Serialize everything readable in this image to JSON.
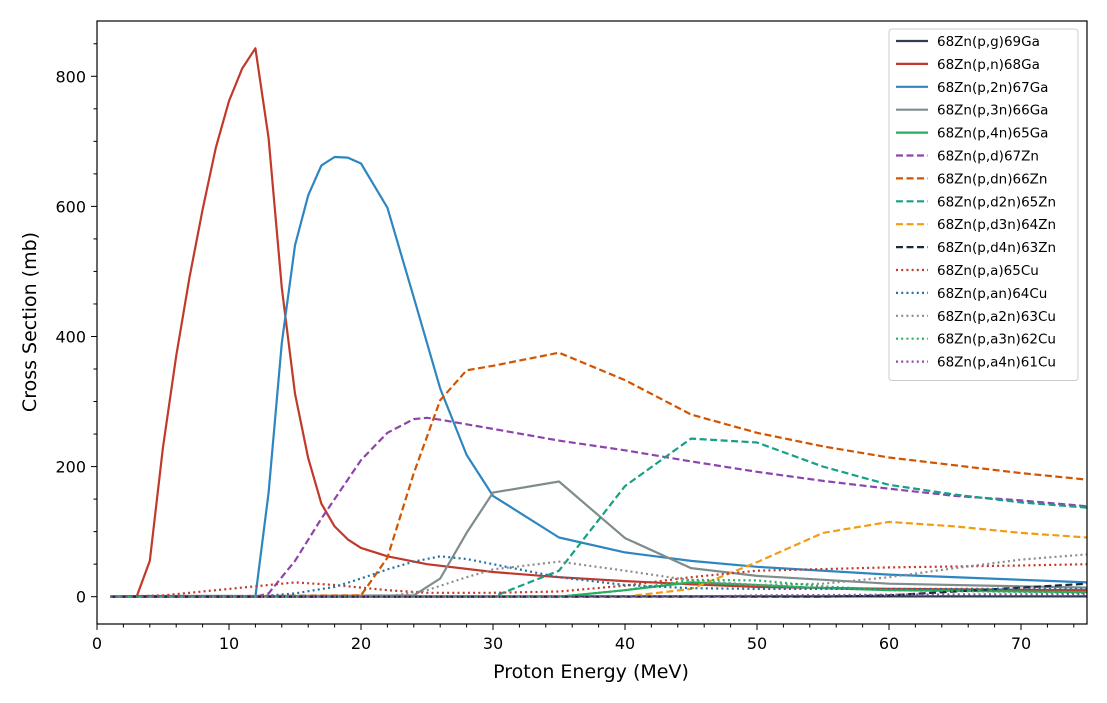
{
  "chart_data": {
    "type": "line",
    "title": "",
    "xlabel": "Proton Energy (MeV)",
    "ylabel": "Cross Section (mb)",
    "xlim": [
      0,
      75
    ],
    "ylim": [
      -42,
      885
    ],
    "xticks": [
      0,
      10,
      20,
      30,
      40,
      50,
      60,
      70
    ],
    "yticks": [
      0,
      200,
      400,
      600,
      800
    ],
    "grid": false,
    "legend_position": "top-right",
    "series": [
      {
        "name": "68Zn(p,g)69Ga",
        "color": "#2c3e50",
        "dash": "solid",
        "x": [
          1,
          5,
          10,
          20,
          30,
          40,
          50,
          60,
          75
        ],
        "y": [
          0.5,
          1,
          1,
          0.5,
          0.5,
          0.5,
          0.5,
          0.5,
          0.5
        ]
      },
      {
        "name": "68Zn(p,n)68Ga",
        "color": "#c0392b",
        "dash": "solid",
        "x": [
          1,
          3,
          4,
          5,
          6,
          7,
          8,
          9,
          10,
          11,
          12,
          13,
          14,
          15,
          16,
          17,
          18,
          19,
          20,
          22,
          25,
          30,
          35,
          40,
          45,
          50,
          60,
          75
        ],
        "y": [
          0,
          0,
          55,
          230,
          370,
          490,
          595,
          690,
          762,
          812,
          843,
          705,
          475,
          312,
          213,
          143,
          108,
          88,
          75,
          62,
          50,
          38,
          30,
          24,
          19,
          15,
          12,
          10
        ]
      },
      {
        "name": "68Zn(p,2n)67Ga",
        "color": "#2e86c1",
        "dash": "solid",
        "x": [
          1,
          12,
          13,
          14,
          15,
          16,
          17,
          18,
          19,
          20,
          22,
          24,
          26,
          28,
          30,
          35,
          40,
          45,
          50,
          60,
          75
        ],
        "y": [
          0,
          0,
          160,
          390,
          540,
          617,
          663,
          676,
          675,
          666,
          598,
          460,
          320,
          218,
          155,
          91,
          68,
          55,
          46,
          34,
          22
        ]
      },
      {
        "name": "68Zn(p,3n)66Ga",
        "color": "#7f8c8d",
        "dash": "solid",
        "x": [
          1,
          24,
          26,
          28,
          30,
          35,
          40,
          45,
          50,
          60,
          75
        ],
        "y": [
          0,
          2,
          28,
          98,
          160,
          177,
          90,
          44,
          32,
          20,
          14
        ]
      },
      {
        "name": "68Zn(p,4n)65Ga",
        "color": "#27ae60",
        "dash": "solid",
        "x": [
          1,
          35,
          40,
          45,
          50,
          55,
          60,
          75
        ],
        "y": [
          0,
          0,
          10,
          22,
          18,
          13,
          10,
          7
        ]
      },
      {
        "name": "68Zn(p,d)67Zn",
        "color": "#8e44ad",
        "dash": "dashed",
        "x": [
          1,
          12,
          13,
          15,
          17,
          19,
          20,
          22,
          24,
          25,
          26,
          30,
          35,
          40,
          45,
          50,
          55,
          60,
          65,
          70,
          75
        ],
        "y": [
          0,
          0,
          5,
          55,
          120,
          180,
          210,
          252,
          273,
          275,
          272,
          258,
          240,
          225,
          208,
          192,
          178,
          166,
          155,
          148,
          139
        ]
      },
      {
        "name": "68Zn(p,dn)66Zn",
        "color": "#d35400",
        "dash": "dashed",
        "x": [
          1,
          20,
          22,
          24,
          26,
          28,
          30,
          35,
          40,
          45,
          50,
          55,
          60,
          70,
          75
        ],
        "y": [
          0,
          2,
          60,
          190,
          302,
          348,
          355,
          375,
          333,
          280,
          252,
          231,
          214,
          190,
          180
        ]
      },
      {
        "name": "68Zn(p,d2n)65Zn",
        "color": "#16a085",
        "dash": "dashed",
        "x": [
          1,
          30,
          35,
          40,
          45,
          50,
          55,
          60,
          65,
          70,
          75
        ],
        "y": [
          0,
          0,
          40,
          170,
          243,
          237,
          200,
          172,
          157,
          145,
          137
        ]
      },
      {
        "name": "68Zn(p,d3n)64Zn",
        "color": "#f39c12",
        "dash": "dashed",
        "x": [
          1,
          40,
          45,
          50,
          55,
          60,
          65,
          70,
          75
        ],
        "y": [
          0,
          0,
          12,
          53,
          98,
          115,
          108,
          98,
          91
        ]
      },
      {
        "name": "68Zn(p,d4n)63Zn",
        "color": "#1b2a3a",
        "dash": "dashed",
        "x": [
          1,
          55,
          60,
          65,
          70,
          75
        ],
        "y": [
          0,
          0,
          2,
          8,
          14,
          20
        ]
      },
      {
        "name": "68Zn(p,a)65Cu",
        "color": "#c0392b",
        "dash": "dotted",
        "x": [
          1,
          5,
          10,
          15,
          18,
          22,
          25,
          30,
          35,
          40,
          45,
          50,
          60,
          70,
          75
        ],
        "y": [
          0,
          2,
          12,
          22,
          18,
          10,
          6,
          6,
          8,
          17,
          30,
          40,
          45,
          48,
          50
        ]
      },
      {
        "name": "68Zn(p,an)64Cu",
        "color": "#2471a3",
        "dash": "dotted",
        "x": [
          1,
          12,
          15,
          18,
          20,
          22,
          24,
          26,
          28,
          30,
          35,
          40,
          45,
          50,
          60,
          75
        ],
        "y": [
          0,
          0,
          5,
          15,
          28,
          42,
          54,
          62,
          58,
          50,
          30,
          18,
          13,
          12,
          12,
          12
        ]
      },
      {
        "name": "68Zn(p,a2n)63Cu",
        "color": "#8c8c8c",
        "dash": "dotted",
        "x": [
          1,
          22,
          25,
          28,
          30,
          35,
          40,
          45,
          50,
          55,
          60,
          65,
          70,
          75
        ],
        "y": [
          0,
          0,
          10,
          30,
          42,
          54,
          40,
          25,
          18,
          20,
          30,
          44,
          57,
          65
        ]
      },
      {
        "name": "68Zn(p,a3n)62Cu",
        "color": "#27ae60",
        "dash": "dotted",
        "x": [
          1,
          35,
          40,
          45,
          50,
          55,
          60,
          75
        ],
        "y": [
          0,
          0,
          10,
          26,
          25,
          16,
          10,
          6
        ]
      },
      {
        "name": "68Zn(p,a4n)61Cu",
        "color": "#884ea0",
        "dash": "dotted",
        "x": [
          1,
          45,
          50,
          60,
          75
        ],
        "y": [
          0,
          0,
          2,
          3,
          4
        ]
      }
    ]
  }
}
